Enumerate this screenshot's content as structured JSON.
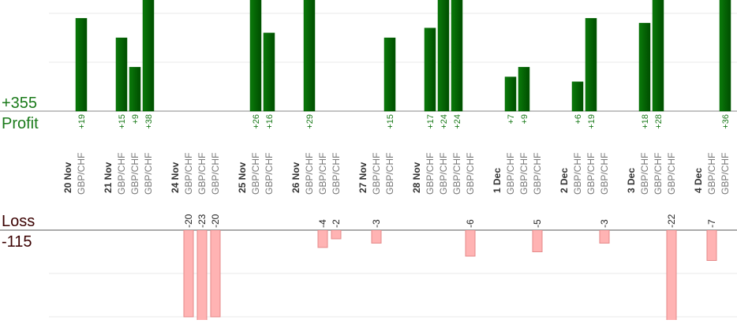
{
  "profit_label": "Profit",
  "profit_total": "+355",
  "loss_label": "Loss",
  "loss_total": -115,
  "profit_gridlines": [
    10,
    20
  ],
  "loss_gridlines": [
    -10,
    -20
  ],
  "profit_color": "#006400",
  "loss_color": "#ffb3b3",
  "days": [
    {
      "date": "20 Nov",
      "trades": [
        {
          "pair": "GBP/CHF",
          "value": 19,
          "value_label": "+19"
        }
      ]
    },
    {
      "date": "21 Nov",
      "trades": [
        {
          "pair": "GBP/CHF",
          "value": 15,
          "value_label": "+15"
        },
        {
          "pair": "GBP/CHF",
          "value": 9,
          "value_label": "+9"
        },
        {
          "pair": "GBP/CHF",
          "value": 38,
          "value_label": "+38"
        }
      ]
    },
    {
      "date": "24 Nov",
      "trades": [
        {
          "pair": "GBP/CHF",
          "value": -20
        },
        {
          "pair": "GBP/CHF",
          "value": -23
        },
        {
          "pair": "GBP/CHF",
          "value": -20
        }
      ]
    },
    {
      "date": "25 Nov",
      "trades": [
        {
          "pair": "GBP/CHF",
          "value": 26,
          "value_label": "+26"
        },
        {
          "pair": "GBP/CHF",
          "value": 16,
          "value_label": "+16"
        }
      ]
    },
    {
      "date": "26 Nov",
      "trades": [
        {
          "pair": "GBP/CHF",
          "value": 29,
          "value_label": "+29"
        },
        {
          "pair": "GBP/CHF",
          "value": -4
        },
        {
          "pair": "GBP/CHF",
          "value": -2
        }
      ]
    },
    {
      "date": "27 Nov",
      "trades": [
        {
          "pair": "GBP/CHF",
          "value": -3
        },
        {
          "pair": "GBP/CHF",
          "value": 15,
          "value_label": "+15"
        }
      ]
    },
    {
      "date": "28 Nov",
      "trades": [
        {
          "pair": "GBP/CHF",
          "value": 17,
          "value_label": "+17"
        },
        {
          "pair": "GBP/CHF",
          "value": 24,
          "value_label": "+24"
        },
        {
          "pair": "GBP/CHF",
          "value": 24,
          "value_label": "+24"
        },
        {
          "pair": "GBP/CHF",
          "value": -6
        }
      ]
    },
    {
      "date": "1 Dec",
      "trades": [
        {
          "pair": "GBP/CHF",
          "value": 7,
          "value_label": "+7"
        },
        {
          "pair": "GBP/CHF",
          "value": 9,
          "value_label": "+9"
        },
        {
          "pair": "GBP/CHF",
          "value": -5
        }
      ]
    },
    {
      "date": "2 Dec",
      "trades": [
        {
          "pair": "GBP/CHF",
          "value": 6,
          "value_label": "+6"
        },
        {
          "pair": "GBP/CHF",
          "value": 19,
          "value_label": "+19"
        },
        {
          "pair": "GBP/CHF",
          "value": -3
        }
      ]
    },
    {
      "date": "3 Dec",
      "trades": [
        {
          "pair": "GBP/CHF",
          "value": 18,
          "value_label": "+18"
        },
        {
          "pair": "GBP/CHF",
          "value": 28,
          "value_label": "+28"
        },
        {
          "pair": "GBP/CHF",
          "value": -22
        }
      ]
    },
    {
      "date": "4 Dec",
      "trades": [
        {
          "pair": "GBP/CHF",
          "value": -7
        },
        {
          "pair": "GBP/CHF",
          "value": 36,
          "value_label": "+36"
        }
      ]
    }
  ]
}
